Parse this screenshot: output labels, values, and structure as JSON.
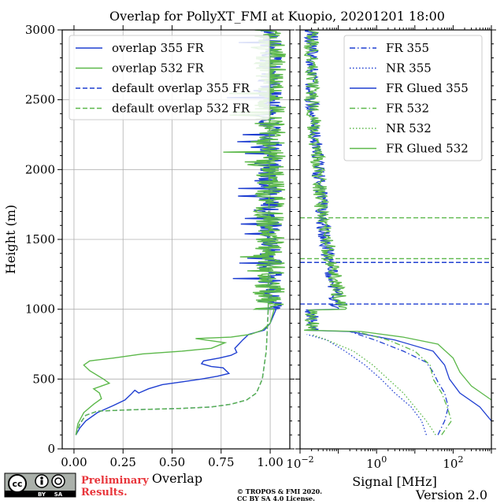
{
  "title": "Overlap for PollyXT_FMI at Kuopio, 20201201 18:00",
  "footer": {
    "preliminary_line1": "Preliminary",
    "preliminary_line2": "Results.",
    "copyright_line1": "© TROPOS & FMI 2020.",
    "copyright_line2": "CC BY SA 4.0 License.",
    "version": "Version 2.0",
    "license_badge": {
      "cc": "cc",
      "by": "BY",
      "sa": "SA"
    }
  },
  "colors": {
    "blue": "#1f3fd1",
    "green": "#5cb84a"
  },
  "chart_data": [
    {
      "type": "line",
      "title": "",
      "xlabel": "Overlap",
      "ylabel": "Height (m)",
      "xlim": [
        -0.06,
        1.1
      ],
      "ylim": [
        0,
        3000
      ],
      "xticks": [
        0.0,
        0.25,
        0.5,
        0.75,
        1.0
      ],
      "xtick_labels": [
        "0.00",
        "0.25",
        "0.50",
        "0.75",
        "1.00"
      ],
      "yticks": [
        0,
        500,
        1000,
        1500,
        2000,
        2500,
        3000
      ],
      "ytick_labels": [
        "0",
        "500",
        "1000",
        "1500",
        "2000",
        "2500",
        "3000"
      ],
      "grid": true,
      "legend_position": "top-left",
      "series": [
        {
          "name": "overlap 355 FR",
          "color": "blue",
          "style": "solid",
          "points": [
            [
              0.01,
              100
            ],
            [
              0.03,
              150
            ],
            [
              0.06,
              200
            ],
            [
              0.12,
              260
            ],
            [
              0.2,
              310
            ],
            [
              0.26,
              350
            ],
            [
              0.29,
              390
            ],
            [
              0.31,
              420
            ],
            [
              0.33,
              400
            ],
            [
              0.38,
              430
            ],
            [
              0.45,
              460
            ],
            [
              0.55,
              480
            ],
            [
              0.65,
              500
            ],
            [
              0.73,
              520
            ],
            [
              0.79,
              540
            ],
            [
              0.76,
              580
            ],
            [
              0.7,
              590
            ],
            [
              0.65,
              610
            ],
            [
              0.66,
              630
            ],
            [
              0.74,
              650
            ],
            [
              0.8,
              670
            ],
            [
              0.83,
              690
            ],
            [
              0.82,
              720
            ],
            [
              0.84,
              750
            ],
            [
              0.86,
              780
            ],
            [
              0.89,
              820
            ],
            [
              0.97,
              850
            ],
            [
              1.0,
              900
            ],
            [
              1.03,
              1000
            ]
          ],
          "noise_from": 1000,
          "noise_to": 3000,
          "noise_center": 1.0,
          "noise_amplitude": 0.06
        },
        {
          "name": "overlap 532 FR",
          "color": "green",
          "style": "solid",
          "points": [
            [
              0.01,
              100
            ],
            [
              0.02,
              180
            ],
            [
              0.05,
              260
            ],
            [
              0.1,
              320
            ],
            [
              0.14,
              360
            ],
            [
              0.13,
              400
            ],
            [
              0.1,
              430
            ],
            [
              0.14,
              450
            ],
            [
              0.18,
              470
            ],
            [
              0.15,
              500
            ],
            [
              0.08,
              560
            ],
            [
              0.05,
              600
            ],
            [
              0.08,
              630
            ],
            [
              0.2,
              650
            ],
            [
              0.35,
              680
            ],
            [
              0.55,
              700
            ],
            [
              0.7,
              720
            ],
            [
              0.77,
              760
            ],
            [
              0.62,
              790
            ],
            [
              0.8,
              800
            ],
            [
              0.9,
              820
            ],
            [
              0.96,
              850
            ],
            [
              1.0,
              900
            ],
            [
              1.02,
              1000
            ]
          ],
          "noise_from": 1000,
          "noise_to": 3000,
          "noise_center": 1.0,
          "noise_amplitude": 0.08
        },
        {
          "name": "default overlap 355 FR",
          "color": "blue",
          "style": "dashed",
          "points": [
            [
              0.01,
              100
            ],
            [
              0.03,
              180
            ],
            [
              0.06,
              240
            ],
            [
              0.12,
              270
            ],
            [
              0.3,
              280
            ],
            [
              0.55,
              290
            ],
            [
              0.7,
              300
            ],
            [
              0.8,
              320
            ],
            [
              0.88,
              350
            ],
            [
              0.93,
              400
            ],
            [
              0.96,
              500
            ],
            [
              0.98,
              700
            ],
            [
              0.99,
              1000
            ],
            [
              1.0,
              3000
            ]
          ]
        },
        {
          "name": "default overlap 532 FR",
          "color": "green",
          "style": "dashed",
          "points": [
            [
              0.01,
              100
            ],
            [
              0.03,
              180
            ],
            [
              0.06,
              240
            ],
            [
              0.12,
              270
            ],
            [
              0.3,
              280
            ],
            [
              0.55,
              290
            ],
            [
              0.7,
              300
            ],
            [
              0.8,
              320
            ],
            [
              0.88,
              350
            ],
            [
              0.93,
              400
            ],
            [
              0.96,
              500
            ],
            [
              0.98,
              700
            ],
            [
              0.99,
              1000
            ],
            [
              1.0,
              3000
            ]
          ]
        }
      ]
    },
    {
      "type": "line",
      "title": "",
      "xlabel": "Signal [MHz]",
      "ylabel": "",
      "xscale": "log",
      "xlim_log10": [
        -2,
        3
      ],
      "ylim": [
        0,
        3000
      ],
      "xtick_labels": [
        {
          "base": "10",
          "exp": "−2",
          "log10": -2
        },
        {
          "base": "10",
          "exp": "0",
          "log10": 0
        },
        {
          "base": "10",
          "exp": "2",
          "log10": 2
        }
      ],
      "legend_position": "top-right",
      "hlines": [
        {
          "y": 1655,
          "color": "green"
        },
        {
          "y": 1362,
          "color": "green"
        },
        {
          "y": 1335,
          "color": "blue"
        },
        {
          "y": 1037,
          "color": "blue"
        }
      ],
      "series": [
        {
          "name": "FR 355",
          "color": "blue",
          "style": "dashdot",
          "points": [
            [
              40,
              100
            ],
            [
              60,
              200
            ],
            [
              75,
              300
            ],
            [
              60,
              400
            ],
            [
              40,
              480
            ],
            [
              30,
              550
            ],
            [
              20,
              620
            ],
            [
              5,
              700
            ],
            [
              0.9,
              780
            ],
            [
              0.2,
              840
            ]
          ]
        },
        {
          "name": "NR 355",
          "color": "blue",
          "style": "dotted",
          "points": [
            [
              20,
              100
            ],
            [
              15,
              200
            ],
            [
              8,
              300
            ],
            [
              3,
              400
            ],
            [
              1.3,
              500
            ],
            [
              0.5,
              600
            ],
            [
              0.15,
              700
            ],
            [
              0.05,
              780
            ],
            [
              0.015,
              820
            ]
          ]
        },
        {
          "name": "FR Glued 355",
          "color": "blue",
          "style": "solid",
          "points": [
            [
              1000,
              200
            ],
            [
              500,
              300
            ],
            [
              150,
              400
            ],
            [
              80,
              500
            ],
            [
              60,
              600
            ],
            [
              30,
              700
            ],
            [
              3,
              780
            ],
            [
              0.2,
              840
            ],
            [
              0.1,
              1000
            ],
            [
              0.06,
              1300
            ],
            [
              0.04,
              1600
            ],
            [
              0.03,
              2000
            ],
            [
              0.02,
              2500
            ],
            [
              0.02,
              3000
            ]
          ],
          "noise_from": 850,
          "noise_to": 3000,
          "noise_amplitude_log": 0.18
        },
        {
          "name": "FR 532",
          "color": "green",
          "style": "dashdot",
          "points": [
            [
              50,
              100
            ],
            [
              90,
              200
            ],
            [
              70,
              300
            ],
            [
              50,
              400
            ],
            [
              30,
              500
            ],
            [
              25,
              600
            ],
            [
              10,
              700
            ],
            [
              2,
              780
            ],
            [
              0.3,
              840
            ]
          ]
        },
        {
          "name": "NR 532",
          "color": "green",
          "style": "dotted",
          "points": [
            [
              35,
              100
            ],
            [
              20,
              200
            ],
            [
              10,
              300
            ],
            [
              5,
              400
            ],
            [
              2,
              500
            ],
            [
              0.8,
              600
            ],
            [
              0.25,
              700
            ],
            [
              0.05,
              780
            ],
            [
              0.02,
              820
            ]
          ]
        },
        {
          "name": "FR Glued 532",
          "color": "green",
          "style": "solid",
          "points": [
            [
              1000,
              350
            ],
            [
              300,
              450
            ],
            [
              150,
              550
            ],
            [
              100,
              650
            ],
            [
              40,
              750
            ],
            [
              5,
              800
            ],
            [
              0.4,
              840
            ],
            [
              0.12,
              1000
            ],
            [
              0.07,
              1300
            ],
            [
              0.04,
              1600
            ],
            [
              0.03,
              2000
            ],
            [
              0.02,
              2500
            ],
            [
              0.02,
              3000
            ]
          ],
          "noise_from": 850,
          "noise_to": 3000,
          "noise_amplitude_log": 0.2
        }
      ]
    }
  ]
}
